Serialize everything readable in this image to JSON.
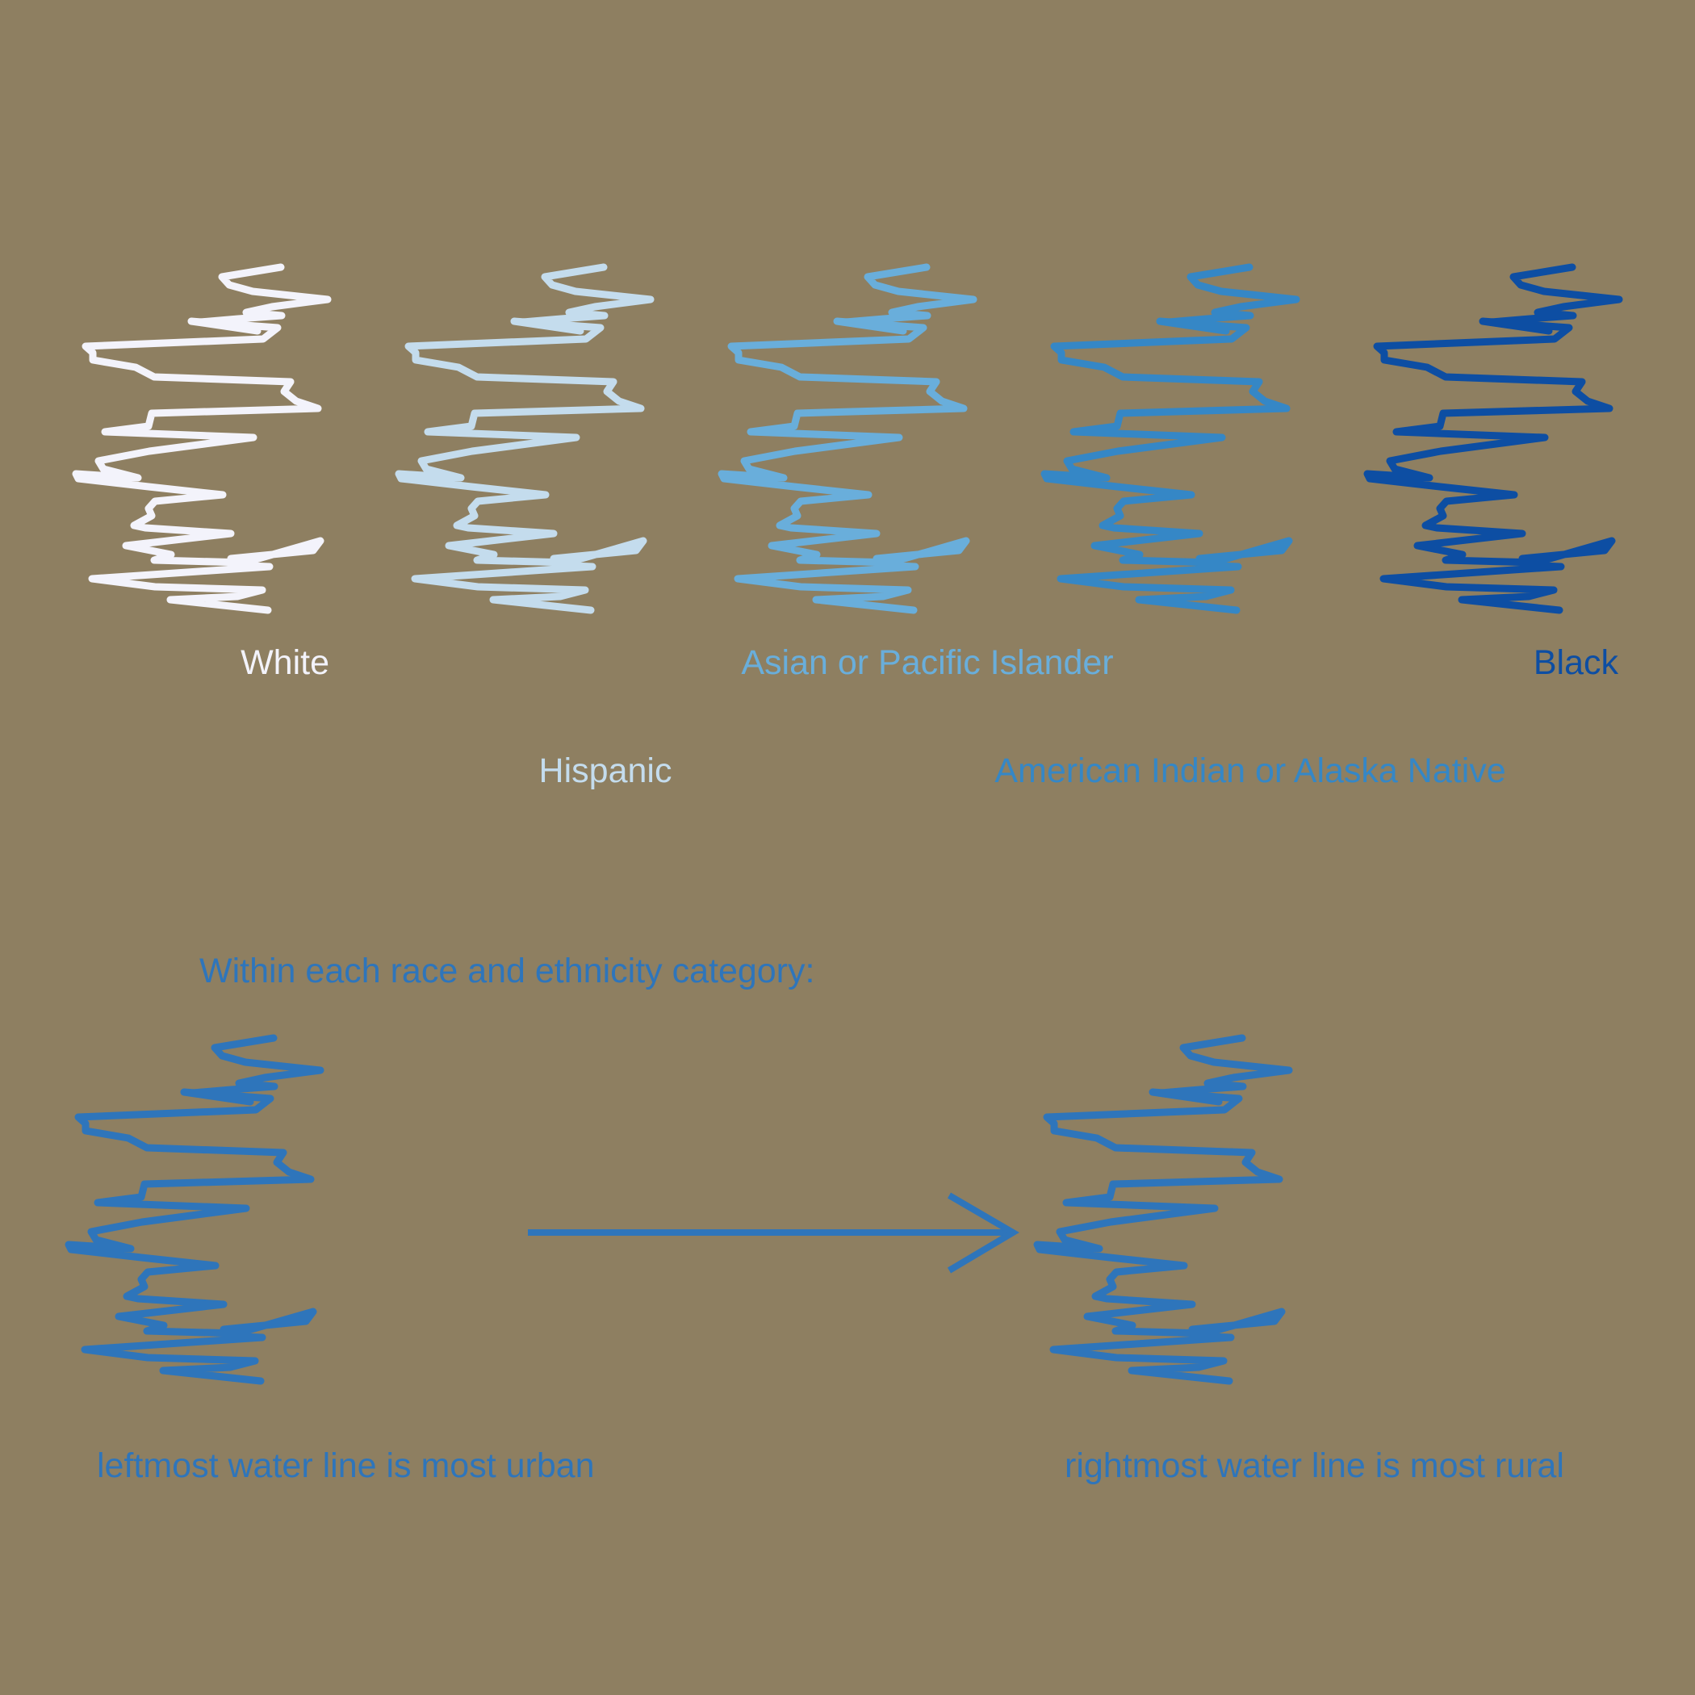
{
  "background_color": "#8e7f61",
  "legend": {
    "categories": [
      {
        "key": "white",
        "label": "White",
        "color": "#f3f3fb"
      },
      {
        "key": "hispanic",
        "label": "Hispanic",
        "color": "#c4dced"
      },
      {
        "key": "asian_pi",
        "label": "Asian or Pacific Islander",
        "color": "#69aedb"
      },
      {
        "key": "aian",
        "label": "American Indian or Alaska Native",
        "color": "#3587c6"
      },
      {
        "key": "black",
        "label": "Black",
        "color": "#0d4ea3"
      }
    ]
  },
  "explainer": {
    "heading": "Within each race and ethnicity category:",
    "left_caption": "leftmost water line is most urban",
    "right_caption": "rightmost water line is most rural",
    "color": "#2e75bb",
    "arrow_icon": "right-arrow-icon"
  }
}
